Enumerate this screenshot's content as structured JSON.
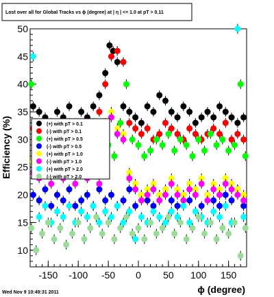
{
  "chart_data": {
    "type": "scatter",
    "title": "Lost over all for Global Tracks vs ϕ (degree) at | η | <= 1.0 at pT > 0.11",
    "xlabel": "ϕ (degree)",
    "ylabel": "Efficiency (%)",
    "xlim": [
      -180,
      180
    ],
    "ylim": [
      7,
      50
    ],
    "x_ticks": [
      -150,
      -100,
      -50,
      0,
      50,
      100,
      150
    ],
    "y_ticks": [
      10,
      15,
      20,
      25,
      30,
      35,
      40,
      45,
      50
    ],
    "grid": false,
    "legend_position": "left-middle",
    "series": [
      {
        "name": "(+) with pT > 0.1",
        "color": "#000000",
        "x": [
          -175,
          -165,
          -155,
          -145,
          -135,
          -125,
          -115,
          -105,
          -95,
          -85,
          -75,
          -65,
          -55,
          -48,
          -42,
          -35,
          -25,
          -15,
          -5,
          5,
          15,
          25,
          35,
          45,
          55,
          65,
          75,
          85,
          95,
          105,
          115,
          125,
          135,
          145,
          155,
          165,
          175
        ],
        "y": [
          36,
          35,
          34,
          33,
          35,
          34,
          36,
          33,
          35,
          34,
          36,
          38,
          42,
          47,
          46,
          44,
          36,
          35,
          34,
          33,
          36,
          35,
          38,
          37,
          35,
          34,
          36,
          35,
          33,
          34,
          35,
          34,
          36,
          35,
          34,
          33,
          34
        ]
      },
      {
        "name": "(-) with pT > 0.1",
        "color": "#ff0000",
        "x": [
          -175,
          -165,
          -155,
          -145,
          -135,
          -125,
          -115,
          -105,
          -95,
          -85,
          -75,
          -65,
          -55,
          -45,
          -35,
          -25,
          -15,
          -5,
          5,
          15,
          25,
          35,
          45,
          55,
          65,
          75,
          85,
          95,
          105,
          115,
          125,
          135,
          145,
          155,
          165,
          175
        ],
        "y": [
          32,
          31,
          33,
          30,
          32,
          31,
          33,
          31,
          32,
          30,
          33,
          35,
          40,
          45,
          46,
          44,
          33,
          32,
          31,
          32,
          30,
          31,
          33,
          32,
          31,
          30,
          32,
          31,
          30,
          31,
          32,
          31,
          33,
          30,
          31,
          30
        ]
      },
      {
        "name": "(+) with pT > 0.5",
        "color": "#00ff00",
        "x": [
          -178,
          -170,
          -160,
          -150,
          -140,
          -130,
          -120,
          -110,
          -100,
          -90,
          -80,
          -70,
          -60,
          -50,
          -40,
          -30,
          -20,
          -10,
          0,
          10,
          20,
          30,
          40,
          50,
          60,
          70,
          80,
          90,
          100,
          110,
          120,
          130,
          140,
          150,
          160,
          170,
          178
        ],
        "y": [
          40,
          28,
          30,
          29,
          31,
          28,
          29,
          30,
          27,
          29,
          30,
          28,
          31,
          29,
          27,
          33,
          40,
          30,
          29,
          27,
          28,
          30,
          29,
          31,
          28,
          30,
          29,
          27,
          30,
          28,
          31,
          29,
          30,
          28,
          29,
          40,
          27
        ]
      },
      {
        "name": "(-) with pT > 0.5",
        "color": "#0000ff",
        "x": [
          -175,
          -165,
          -155,
          -145,
          -135,
          -125,
          -115,
          -105,
          -95,
          -85,
          -75,
          -65,
          -55,
          -45,
          -35,
          -25,
          -15,
          -5,
          5,
          15,
          25,
          35,
          45,
          55,
          65,
          75,
          85,
          95,
          105,
          115,
          125,
          135,
          145,
          155,
          165,
          175
        ],
        "y": [
          20,
          19,
          21,
          18,
          20,
          19,
          21,
          18,
          19,
          20,
          18,
          21,
          19,
          20,
          18,
          19,
          21,
          18,
          20,
          19,
          18,
          20,
          21,
          19,
          18,
          20,
          19,
          21,
          18,
          20,
          19,
          18,
          20,
          19,
          21,
          18
        ]
      },
      {
        "name": "(+) with pT > 1.0",
        "color": "#ffff00",
        "x": [
          -175,
          -165,
          -155,
          -145,
          -135,
          -125,
          -115,
          -105,
          -95,
          -85,
          -75,
          -65,
          -55,
          -45,
          -35,
          -25,
          -15,
          -5,
          5,
          15,
          25,
          35,
          45,
          55,
          65,
          75,
          85,
          95,
          105,
          115,
          125,
          135,
          145,
          155,
          165,
          175
        ],
        "y": [
          26,
          25,
          27,
          24,
          26,
          25,
          27,
          24,
          26,
          25,
          27,
          24,
          33,
          35,
          32,
          31,
          24,
          22,
          20,
          21,
          22,
          20,
          21,
          23,
          21,
          20,
          22,
          21,
          23,
          20,
          22,
          21,
          23,
          22,
          21,
          20
        ]
      },
      {
        "name": "(-) with pT > 1.0",
        "color": "#ff00ff",
        "x": [
          -175,
          -165,
          -155,
          -145,
          -135,
          -125,
          -115,
          -105,
          -95,
          -85,
          -75,
          -65,
          -55,
          -45,
          -35,
          -25,
          -15,
          -5,
          5,
          15,
          25,
          35,
          45,
          55,
          65,
          75,
          85,
          95,
          105,
          115,
          125,
          135,
          145,
          155,
          165,
          175
        ],
        "y": [
          24,
          23,
          25,
          22,
          24,
          23,
          25,
          22,
          24,
          23,
          25,
          22,
          32,
          34,
          31,
          30,
          23,
          21,
          19,
          20,
          21,
          19,
          20,
          22,
          20,
          19,
          21,
          20,
          22,
          19,
          21,
          20,
          22,
          21,
          20,
          19
        ]
      },
      {
        "name": "(+) with pT > 2.0",
        "color": "#00ffff",
        "x": [
          -175,
          -165,
          -155,
          -145,
          -135,
          -125,
          -115,
          -105,
          -95,
          -85,
          -75,
          -65,
          -55,
          -45,
          -35,
          -25,
          -15,
          -5,
          5,
          15,
          25,
          35,
          45,
          55,
          65,
          75,
          85,
          95,
          105,
          115,
          125,
          135,
          145,
          155,
          165,
          175
        ],
        "y": [
          45,
          16,
          18,
          15,
          17,
          16,
          18,
          15,
          17,
          16,
          18,
          15,
          17,
          16,
          18,
          15,
          17,
          12,
          16,
          15,
          17,
          16,
          15,
          17,
          16,
          18,
          15,
          17,
          16,
          15,
          17,
          16,
          18,
          15,
          50,
          16
        ]
      },
      {
        "name": "(-) with pT > 2.0",
        "color": "#99dd99",
        "x": [
          -178,
          -170,
          -160,
          -150,
          -140,
          -130,
          -120,
          -110,
          -100,
          -90,
          -80,
          -70,
          -60,
          -50,
          -40,
          -30,
          -20,
          -10,
          0,
          10,
          20,
          30,
          40,
          50,
          60,
          70,
          80,
          90,
          100,
          110,
          120,
          130,
          140,
          150,
          160,
          170,
          178
        ],
        "y": [
          14,
          10,
          13,
          15,
          12,
          14,
          11,
          13,
          15,
          12,
          14,
          16,
          13,
          15,
          12,
          14,
          16,
          13,
          14,
          12,
          15,
          13,
          14,
          16,
          13,
          15,
          12,
          14,
          16,
          13,
          15,
          12,
          14,
          13,
          15,
          9,
          14
        ]
      }
    ]
  },
  "timestamp": "Wed Nov  9 10:49:31 2011"
}
